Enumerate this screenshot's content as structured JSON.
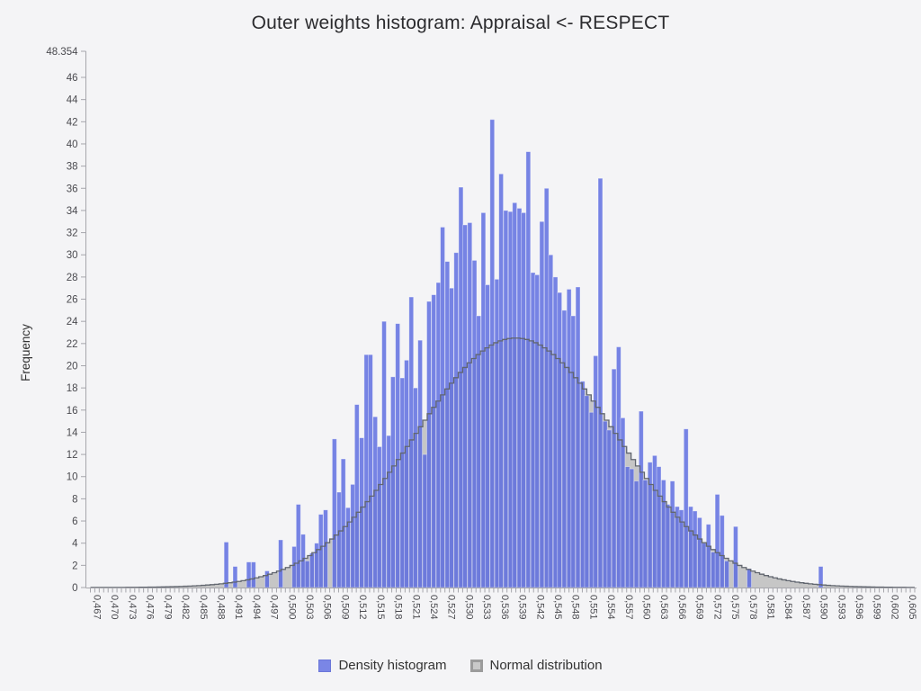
{
  "title": "Outer weights histogram: Appraisal <- RESPECT",
  "y_axis": {
    "title": "Frequency",
    "tick_labels": [
      "0",
      "2",
      "4",
      "6",
      "8",
      "10",
      "12",
      "14",
      "16",
      "18",
      "20",
      "22",
      "24",
      "26",
      "28",
      "30",
      "32",
      "34",
      "36",
      "38",
      "40",
      "42",
      "44",
      "46",
      "48.354"
    ],
    "max": 48.354
  },
  "x_axis": {
    "tick_labels": [
      "0,467",
      "0,470",
      "0,473",
      "0,476",
      "0,479",
      "0,482",
      "0,485",
      "0,488",
      "0,491",
      "0,494",
      "0,497",
      "0,500",
      "0,503",
      "0,506",
      "0,509",
      "0,512",
      "0,515",
      "0,518",
      "0,521",
      "0,524",
      "0,527",
      "0,530",
      "0,533",
      "0,536",
      "0,539",
      "0,542",
      "0,545",
      "0,548",
      "0,551",
      "0,554",
      "0,557",
      "0,560",
      "0,563",
      "0,566",
      "0,569",
      "0,572",
      "0,575",
      "0,578",
      "0,581",
      "0,584",
      "0,587",
      "0,590",
      "0,593",
      "0,596",
      "0,599",
      "0,602",
      "0,605"
    ],
    "min": 0.467,
    "max": 0.6065,
    "label_step": 0.003
  },
  "legend": {
    "items": [
      {
        "label": "Density histogram",
        "color": "#7a86e6"
      },
      {
        "label": "Normal distribution",
        "color": "#c9c9c9"
      }
    ]
  },
  "colors": {
    "background": "#f4f4f6",
    "bar_fill": "rgba(86,102,224,0.80)",
    "bar_edge": "rgba(255,255,255,0.45)",
    "normal_fill": "#c6c6c6",
    "normal_outline": "#61666f",
    "axis_line": "#a6a6ac",
    "tick_text": "#4a4a4f"
  },
  "chart_data": {
    "type": "bar",
    "title": "Outer weights histogram: Appraisal <- RESPECT",
    "xlabel": "",
    "ylabel": "Frequency",
    "ylim": [
      0,
      48.354
    ],
    "xlim": [
      0.467,
      0.6065
    ],
    "grid": false,
    "legend_position": "bottom",
    "bin_width": 0.00075,
    "bars": [
      [
        0.49,
        4.1
      ],
      [
        0.4915,
        1.9
      ],
      [
        0.4938,
        2.3
      ],
      [
        0.4946,
        2.3
      ],
      [
        0.4969,
        1.5
      ],
      [
        0.4992,
        4.3
      ],
      [
        0.5015,
        3.7
      ],
      [
        0.5022,
        7.5
      ],
      [
        0.503,
        4.8
      ],
      [
        0.5037,
        2.4
      ],
      [
        0.5045,
        3.1
      ],
      [
        0.5053,
        4.0
      ],
      [
        0.506,
        6.6
      ],
      [
        0.5068,
        7.0
      ],
      [
        0.5083,
        13.4
      ],
      [
        0.5091,
        8.6
      ],
      [
        0.5098,
        11.6
      ],
      [
        0.5106,
        7.2
      ],
      [
        0.5114,
        9.3
      ],
      [
        0.5121,
        16.5
      ],
      [
        0.5129,
        13.5
      ],
      [
        0.5137,
        21.0
      ],
      [
        0.5144,
        21.0
      ],
      [
        0.5152,
        15.4
      ],
      [
        0.5159,
        12.7
      ],
      [
        0.5167,
        24.0
      ],
      [
        0.5175,
        13.7
      ],
      [
        0.5182,
        19.0
      ],
      [
        0.519,
        23.8
      ],
      [
        0.5198,
        18.9
      ],
      [
        0.5205,
        20.5
      ],
      [
        0.5213,
        26.2
      ],
      [
        0.522,
        18.0
      ],
      [
        0.5228,
        22.3
      ],
      [
        0.5236,
        12.0
      ],
      [
        0.5243,
        25.8
      ],
      [
        0.5251,
        26.4
      ],
      [
        0.5259,
        27.5
      ],
      [
        0.5266,
        32.5
      ],
      [
        0.5274,
        29.4
      ],
      [
        0.5281,
        27.0
      ],
      [
        0.5289,
        30.2
      ],
      [
        0.5297,
        36.1
      ],
      [
        0.5304,
        32.7
      ],
      [
        0.5312,
        32.9
      ],
      [
        0.532,
        29.5
      ],
      [
        0.5327,
        24.5
      ],
      [
        0.5335,
        33.8
      ],
      [
        0.5342,
        27.3
      ],
      [
        0.535,
        42.2
      ],
      [
        0.5358,
        27.8
      ],
      [
        0.5365,
        37.3
      ],
      [
        0.5373,
        34.0
      ],
      [
        0.5381,
        33.9
      ],
      [
        0.5388,
        34.7
      ],
      [
        0.5396,
        34.2
      ],
      [
        0.5403,
        33.8
      ],
      [
        0.5411,
        39.3
      ],
      [
        0.5419,
        28.4
      ],
      [
        0.5426,
        28.2
      ],
      [
        0.5434,
        33.0
      ],
      [
        0.5442,
        36.0
      ],
      [
        0.5449,
        30.0
      ],
      [
        0.5457,
        28.0
      ],
      [
        0.5464,
        26.6
      ],
      [
        0.5472,
        25.0
      ],
      [
        0.548,
        26.9
      ],
      [
        0.5487,
        24.5
      ],
      [
        0.5495,
        27.1
      ],
      [
        0.5503,
        18.6
      ],
      [
        0.551,
        17.3
      ],
      [
        0.5518,
        15.8
      ],
      [
        0.5525,
        20.9
      ],
      [
        0.5533,
        36.9
      ],
      [
        0.5541,
        15.0
      ],
      [
        0.5548,
        14.2
      ],
      [
        0.5556,
        19.7
      ],
      [
        0.5564,
        21.7
      ],
      [
        0.5571,
        15.3
      ],
      [
        0.5579,
        10.9
      ],
      [
        0.5586,
        10.7
      ],
      [
        0.5594,
        9.6
      ],
      [
        0.5602,
        15.9
      ],
      [
        0.5609,
        9.7
      ],
      [
        0.5617,
        11.3
      ],
      [
        0.5625,
        11.9
      ],
      [
        0.5632,
        10.9
      ],
      [
        0.564,
        9.7
      ],
      [
        0.5647,
        7.5
      ],
      [
        0.5655,
        9.6
      ],
      [
        0.5663,
        7.3
      ],
      [
        0.567,
        7.0
      ],
      [
        0.5678,
        14.3
      ],
      [
        0.5686,
        7.3
      ],
      [
        0.5693,
        6.9
      ],
      [
        0.5701,
        6.3
      ],
      [
        0.5708,
        4.0
      ],
      [
        0.5716,
        5.7
      ],
      [
        0.5724,
        3.2
      ],
      [
        0.5731,
        8.4
      ],
      [
        0.5739,
        6.5
      ],
      [
        0.5747,
        2.4
      ],
      [
        0.5762,
        5.5
      ],
      [
        0.5785,
        1.7
      ],
      [
        0.5906,
        1.9
      ]
    ],
    "normal_curve": {
      "mean": 0.539,
      "sigma": 0.0172,
      "peak": 22.5
    }
  }
}
